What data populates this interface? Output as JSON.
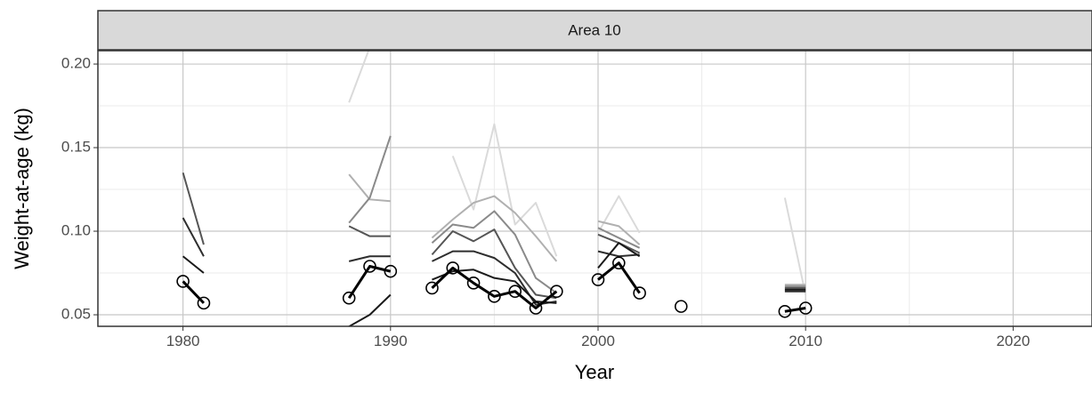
{
  "chart_data": {
    "type": "line",
    "strip": "Area 10",
    "x_label": "Year",
    "y_label": "Weight-at-age (kg)",
    "x": [
      1980,
      1981,
      1982,
      1988,
      1989,
      1990,
      1991,
      1992,
      1993,
      1994,
      1995,
      1996,
      1997,
      1998,
      1999,
      2000,
      2001,
      2002,
      2003,
      2004,
      2005,
      2009,
      2010
    ],
    "series": [
      {
        "color": "#000000",
        "points": true,
        "width": 3,
        "values": [
          0.07,
          0.057,
          null,
          0.06,
          0.079,
          0.076,
          null,
          0.066,
          0.078,
          0.069,
          0.061,
          0.064,
          0.054,
          0.064,
          null,
          0.071,
          0.081,
          0.063,
          null,
          0.055,
          null,
          0.052,
          0.054
        ]
      },
      {
        "color": "#1a1a1a",
        "values": [
          0.085,
          0.075,
          null,
          0.043,
          0.05,
          0.062,
          null,
          0.071,
          0.076,
          0.077,
          0.072,
          0.07,
          0.058,
          0.057,
          null,
          0.078,
          0.093,
          0.085,
          null,
          null,
          null,
          0.065,
          0.065
        ]
      },
      {
        "color": "#2e2e2e",
        "values": [
          0.108,
          0.085,
          null,
          0.082,
          0.085,
          0.085,
          null,
          0.082,
          0.088,
          0.088,
          0.084,
          0.075,
          0.056,
          0.058,
          null,
          0.088,
          0.085,
          0.086,
          null,
          null,
          null,
          0.064,
          0.064
        ]
      },
      {
        "color": "#555555",
        "values": [
          0.135,
          0.092,
          null,
          0.103,
          0.097,
          0.097,
          null,
          0.086,
          0.1,
          0.094,
          0.101,
          0.078,
          0.062,
          0.06,
          null,
          0.098,
          0.093,
          0.087,
          null,
          null,
          null,
          0.066,
          0.066
        ]
      },
      {
        "color": "#8a8a8a",
        "values": [
          null,
          null,
          null,
          0.105,
          0.12,
          0.157,
          null,
          0.093,
          0.104,
          0.102,
          0.112,
          0.098,
          0.072,
          0.063,
          null,
          0.102,
          0.096,
          0.09,
          null,
          null,
          null,
          0.067,
          0.067
        ]
      },
      {
        "color": "#b0b0b0",
        "values": [
          null,
          null,
          null,
          0.134,
          0.119,
          0.118,
          null,
          0.096,
          0.107,
          0.117,
          0.121,
          0.111,
          0.097,
          0.082,
          null,
          0.106,
          0.103,
          0.092,
          null,
          null,
          null,
          0.068,
          0.068
        ]
      },
      {
        "color": "#dadada",
        "values": [
          null,
          null,
          null,
          0.177,
          0.21,
          null,
          null,
          null,
          0.145,
          0.113,
          0.164,
          0.104,
          0.117,
          0.085,
          null,
          0.099,
          0.121,
          0.099,
          null,
          null,
          null,
          0.12,
          0.062
        ]
      }
    ],
    "xlim": [
      1975.9,
      2023.8
    ],
    "ylim": [
      0.0431,
      0.208
    ],
    "xticks": [
      1980,
      1990,
      2000,
      2010,
      2020
    ],
    "yticks": [
      {
        "value": 0.05,
        "label": "0.05"
      },
      {
        "value": 0.1,
        "label": "0.10"
      },
      {
        "value": 0.15,
        "label": "0.15"
      },
      {
        "value": 0.2,
        "label": "0.20"
      }
    ],
    "xminor": [
      1985,
      1995,
      2005,
      2015
    ],
    "yminor": [
      0.075,
      0.125,
      0.175
    ],
    "grid": true
  }
}
